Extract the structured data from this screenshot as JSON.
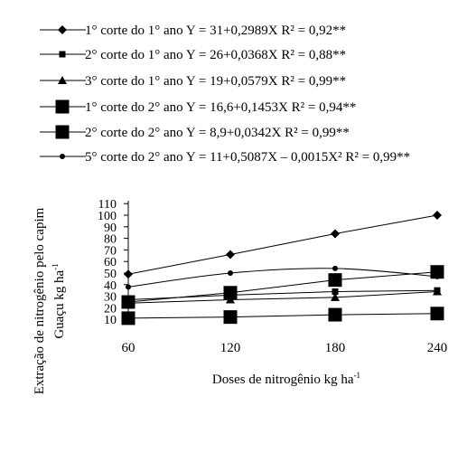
{
  "chart_data": {
    "type": "line",
    "x": [
      60,
      120,
      180,
      240
    ],
    "x_ticks": [
      "60",
      "120",
      "180",
      "240"
    ],
    "xlabel": "Doses de nitrogênio kg ha",
    "xlabel_sup": "-1",
    "ylabel_line1": "Extração de nitrogênio pelo capim",
    "ylabel_line2": "Guaçu kg ha",
    "ylabel_sup": "-1",
    "ylim": [
      0,
      110
    ],
    "y_ticks": [
      10,
      20,
      30,
      40,
      50,
      60,
      70,
      80,
      90,
      100,
      110
    ],
    "grid": false,
    "legend_position": "top",
    "series": [
      {
        "name": "1° corte do 1° ano",
        "equation": "Y = 31+0,2989X",
        "r2": "R² = 0,92**",
        "marker": "diamond",
        "values": [
          49,
          66,
          84,
          100
        ]
      },
      {
        "name": "2° corte do 1° ano",
        "equation": "Y = 26+0,0368X",
        "r2": "R² = 0,88**",
        "marker": "square-small",
        "values": [
          27,
          31,
          34,
          35
        ]
      },
      {
        "name": "3° corte do 1° ano",
        "equation": "Y = 19+0,0579X",
        "r2": "R² = 0,99**",
        "marker": "triangle",
        "values": [
          24,
          27,
          29,
          34
        ]
      },
      {
        "name": "1° corte do 2° ano",
        "equation": "Y = 16,6+0,1453X",
        "r2": "R² = 0,94**",
        "marker": "square-large",
        "values": [
          25,
          33,
          44,
          51
        ]
      },
      {
        "name": "2° corte do 2° ano",
        "equation": "Y = 8,9+0,0342X",
        "r2": "R² = 0,99**",
        "marker": "square-large",
        "values": [
          11,
          12,
          14,
          15
        ]
      },
      {
        "name": "5° corte do 2° ano",
        "equation": "Y = 11+0,5087X – 0,0015X²",
        "r2": "R² = 0,99**",
        "marker": "circle",
        "values": [
          38,
          50,
          54,
          47
        ]
      }
    ]
  }
}
